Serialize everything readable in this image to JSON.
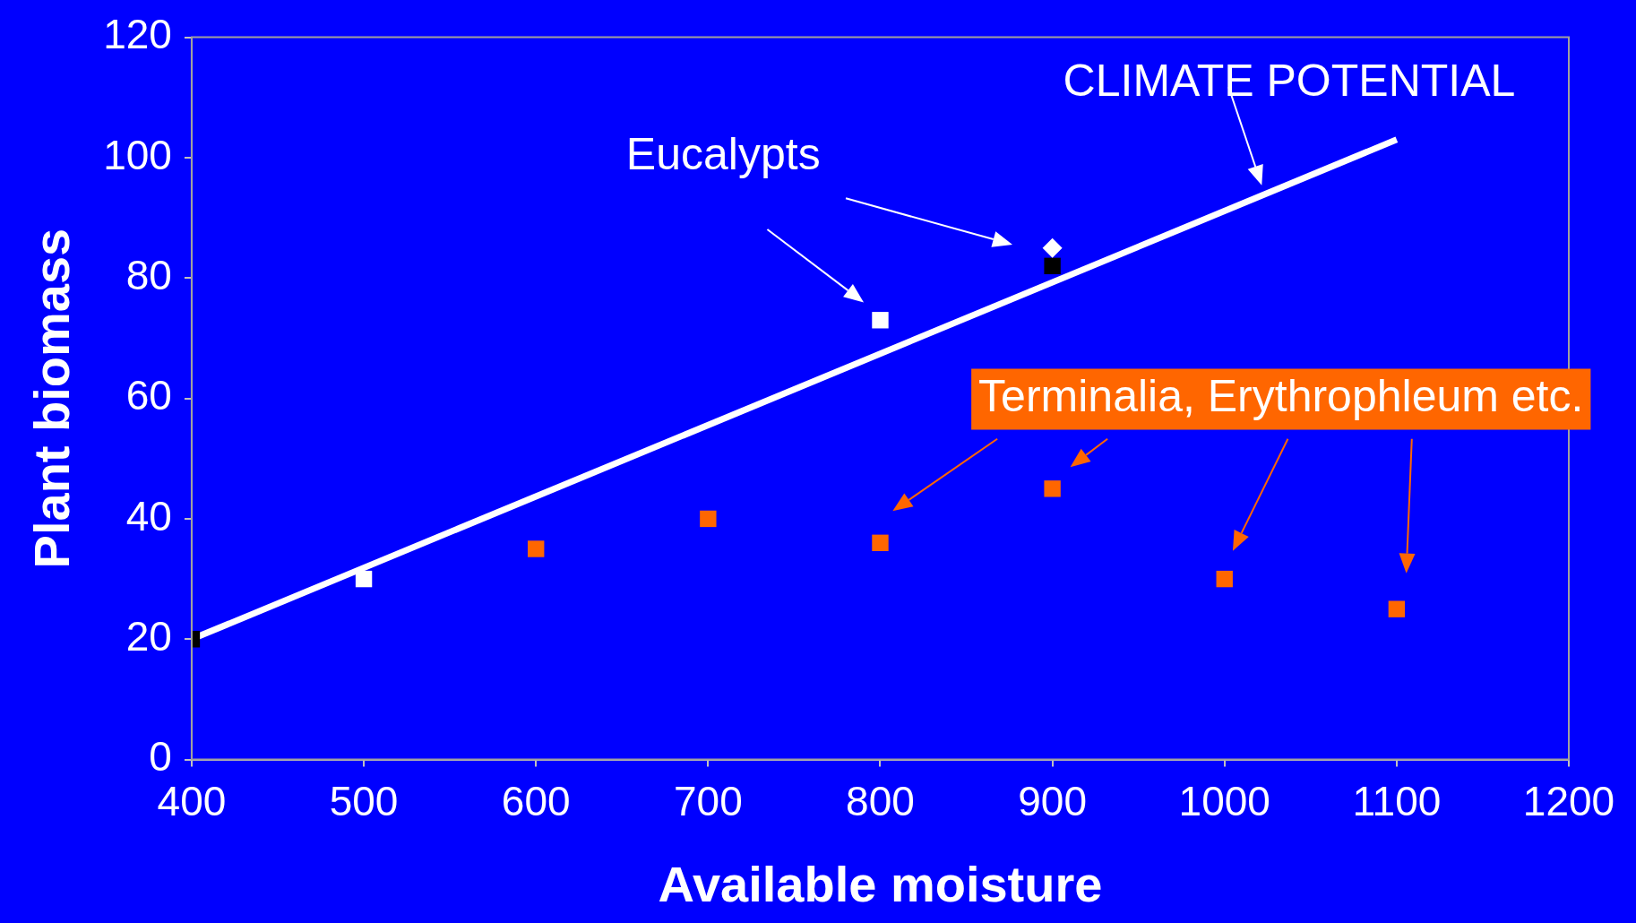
{
  "chart_data": {
    "type": "scatter",
    "xlabel": "Available moisture",
    "ylabel": "Plant biomass",
    "xlim": [
      400,
      1200
    ],
    "xticks": [
      400,
      500,
      600,
      700,
      800,
      900,
      1000,
      1100,
      1200
    ],
    "ylim": [
      0,
      120
    ],
    "yticks": [
      0,
      20,
      40,
      60,
      80,
      100,
      120
    ],
    "grid": false,
    "legend": false,
    "annotations": [
      "CLIMATE POTENTIAL",
      "Eucalypts",
      "Terminalia, Erythrophleum etc."
    ],
    "series": [
      {
        "type": "line",
        "x": [
          400,
          1100
        ],
        "values": [
          20,
          103
        ],
        "color": "#ffffff",
        "marker": "none",
        "line_style": "solid"
      },
      {
        "x": [
          400,
          900
        ],
        "values": [
          20,
          82
        ],
        "color": "#000000",
        "marker": "square"
      },
      {
        "x": [
          500,
          800
        ],
        "values": [
          30,
          73
        ],
        "color": "#ffffff",
        "marker": "square"
      },
      {
        "x": [
          900
        ],
        "values": [
          85
        ],
        "color": "#ffffff",
        "marker": "diamond"
      },
      {
        "x": [
          600,
          700,
          800,
          900,
          1000,
          1100
        ],
        "values": [
          35,
          40,
          36,
          45,
          30,
          25
        ],
        "color": "#ff6600",
        "marker": "square"
      }
    ]
  }
}
